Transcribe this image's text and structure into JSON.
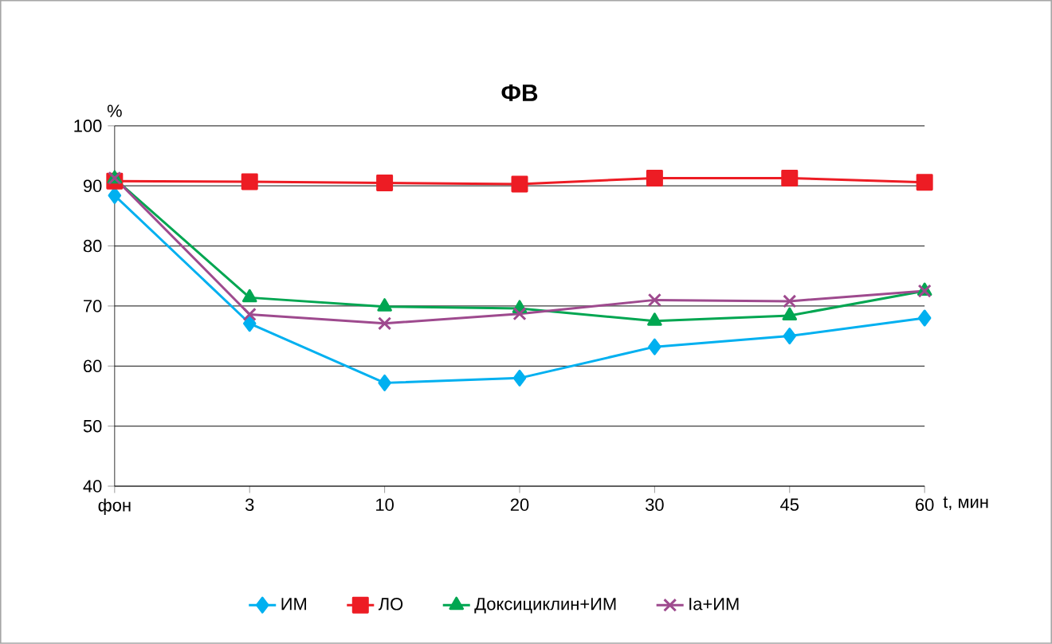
{
  "chart_data": {
    "type": "line",
    "title": "ФВ",
    "ylabel": "%",
    "xlabel": "t, мин",
    "categories": [
      "фон",
      "3",
      "10",
      "20",
      "30",
      "45",
      "60"
    ],
    "series": [
      {
        "name": "ИМ",
        "color": "#00b0f0",
        "marker": "diamond",
        "values": [
          88.4,
          67.1,
          57.2,
          58.0,
          63.2,
          65.0,
          68.0
        ]
      },
      {
        "name": "ЛО",
        "color": "#ed1c24",
        "marker": "square",
        "values": [
          90.8,
          90.7,
          90.5,
          90.3,
          91.3,
          91.3,
          90.6
        ]
      },
      {
        "name": "Доксициклин+ИМ",
        "color": "#00a651",
        "marker": "triangle",
        "values": [
          91.2,
          71.4,
          69.9,
          69.6,
          67.5,
          68.4,
          72.5
        ]
      },
      {
        "name": "Ia+ИМ",
        "color": "#9e4a8e",
        "marker": "cross",
        "values": [
          91.3,
          68.6,
          67.1,
          68.7,
          71.0,
          70.8,
          72.5
        ]
      }
    ],
    "ylim": [
      40,
      100
    ],
    "yticks": [
      40,
      50,
      60,
      70,
      80,
      90,
      100
    ],
    "grid": "y",
    "legend": "bottom"
  }
}
